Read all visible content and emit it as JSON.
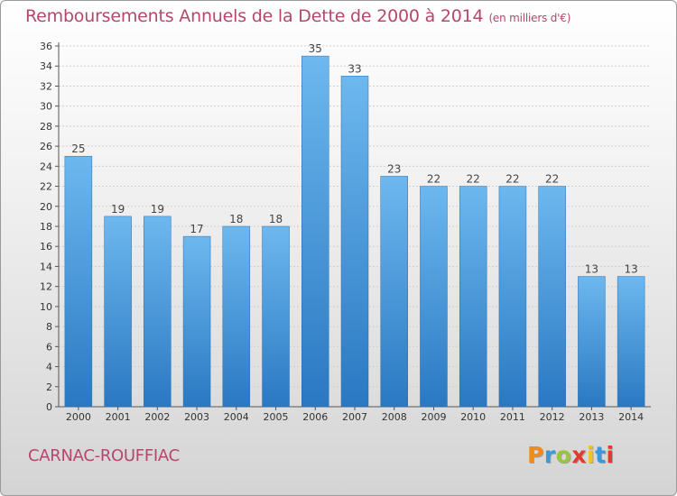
{
  "header": {
    "title": "Remboursements Annuels de la Dette de 2000 à 2014",
    "subtitle": "(en milliers d'€)"
  },
  "footer": {
    "place": "CARNAC-ROUFFIAC",
    "logo_text": "Proxiti",
    "logo_colors": [
      "#f08a1e",
      "#3a9ad9",
      "#9bc53d",
      "#e23a2d",
      "#f6c026",
      "#3a9ad9",
      "#e23a2d"
    ]
  },
  "colors": {
    "bar_top": "#6db8ef",
    "bar_bottom": "#2a78c2",
    "accent_text": "#b5476f",
    "grid": "#d0d0d0"
  },
  "chart_data": {
    "type": "bar",
    "title": "Remboursements Annuels de la Dette de 2000 à 2014",
    "subtitle": "(en milliers d'€)",
    "categories": [
      "2000",
      "2001",
      "2002",
      "2003",
      "2004",
      "2005",
      "2006",
      "2007",
      "2008",
      "2009",
      "2010",
      "2011",
      "2012",
      "2013",
      "2014"
    ],
    "values": [
      25,
      19,
      19,
      17,
      18,
      18,
      35,
      33,
      23,
      22,
      22,
      22,
      22,
      13,
      13
    ],
    "ylim": [
      0,
      36
    ],
    "yticks": [
      0,
      2,
      4,
      6,
      8,
      10,
      12,
      14,
      16,
      18,
      20,
      22,
      24,
      26,
      28,
      30,
      32,
      34,
      36
    ],
    "grid": true,
    "data_labels": true
  }
}
